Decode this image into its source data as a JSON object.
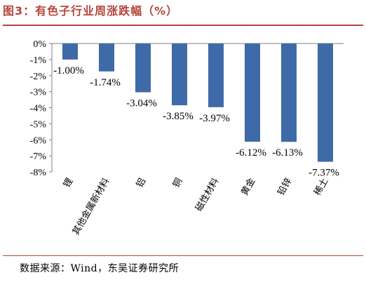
{
  "title": "图3：有色子行业周涨跌幅（%）",
  "source": "数据来源：Wind，东吴证券研究所",
  "colors": {
    "bar": "#3f6aa8",
    "title": "#b5453b",
    "axis": "#7f7f7f"
  },
  "chart_data": {
    "type": "bar",
    "title": "图3：有色子行业周涨跌幅（%）",
    "categories": [
      "锂",
      "其他金属新材料",
      "铝",
      "铜",
      "磁性材料",
      "黄金",
      "铅锌",
      "稀土"
    ],
    "values": [
      -1.0,
      -1.74,
      -3.04,
      -3.85,
      -3.97,
      -6.12,
      -6.13,
      -7.37
    ],
    "data_labels": [
      "-1.00%",
      "-1.74%",
      "-3.04%",
      "-3.85%",
      "-3.97%",
      "-6.12%",
      "-6.13%",
      "-7.37%"
    ],
    "ylim": [
      -8,
      0
    ],
    "yticks": [
      0,
      -1,
      -2,
      -3,
      -4,
      -5,
      -6,
      -7,
      -8
    ],
    "ytick_labels": [
      "0%",
      "-1%",
      "-2%",
      "-3%",
      "-4%",
      "-5%",
      "-6%",
      "-7%",
      "-8%"
    ],
    "grid": false,
    "legend": "none"
  }
}
